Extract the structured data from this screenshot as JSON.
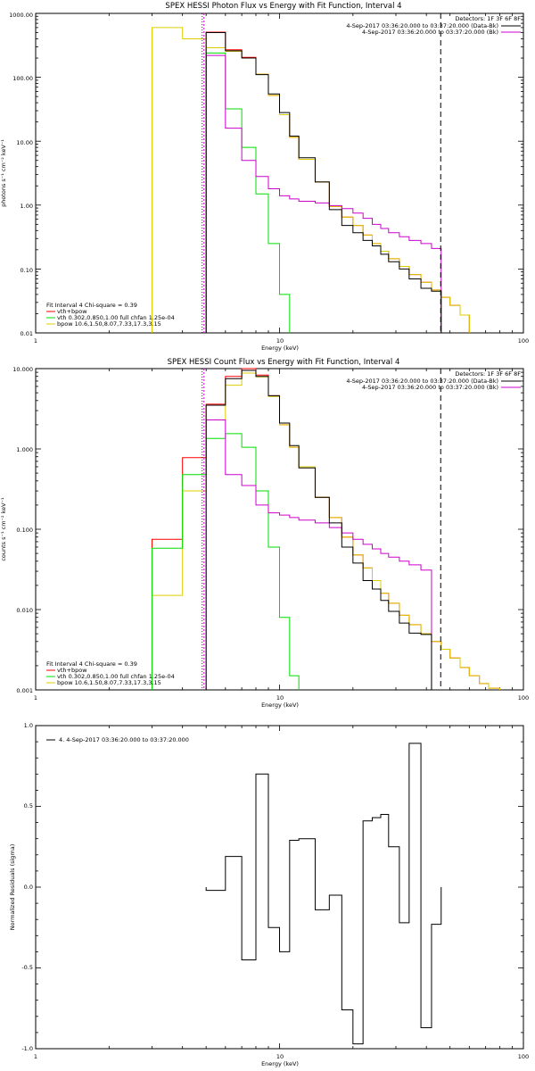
{
  "colors": {
    "data": "#000000",
    "background": "#cc00cc",
    "vth": "#00dd00",
    "bpow": "#ddcc00",
    "total": "#ff0000",
    "fit_bound": "#cc00cc"
  },
  "chart_data": [
    {
      "id": "photon",
      "type": "line",
      "step": true,
      "title": "SPEX HESSI Photon Flux vs Energy with Fit Function, Interval 4",
      "xlabel": "Energy (keV)",
      "ylabel": "photons s⁻¹ cm⁻² keV⁻¹",
      "xscale": "log",
      "yscale": "log",
      "xlim": [
        1,
        100
      ],
      "ylim": [
        0.01,
        1000
      ],
      "x_ticks": [
        "1",
        "10",
        "100"
      ],
      "y_ticks": [
        "0.01",
        "0.10",
        "1.00",
        "10.00",
        "100.00",
        "1000.00"
      ],
      "legend_right": [
        "Detectors: 1F 3F 6F 8F",
        "4-Sep-2017 03:36:20.000 to 03:37:20.000 (Data-Bk)",
        "4-Sep-2017 03:36:20.000 to 03:37:20.000 (Bk)"
      ],
      "legend_left": [
        "Fit Interval 4   Chi-square = 0.39",
        "vth+bpow",
        "vth 0.302,0.850,1.00  full chfan 1.25e-04",
        "bpow 10.6,1.50,8.07,7.33,17.3,3.15"
      ],
      "fit_range": [
        4.9,
        45.8
      ],
      "edges": [
        3.0,
        4.0,
        5.0,
        6.0,
        7.0,
        8.0,
        9.0,
        10.0,
        11.0,
        12.0,
        14.0,
        16.0,
        18.0,
        20.0,
        22.0,
        24.0,
        26.0,
        28.0,
        31.0,
        34.0,
        38.0,
        42.0,
        46.0,
        50.0,
        55.0,
        60.0
      ],
      "series": [
        {
          "name": "Data-Bk",
          "values": [
            null,
            null,
            500,
            260,
            200,
            110,
            55,
            28,
            12,
            5.5,
            2.3,
            0.85,
            0.48,
            0.37,
            0.28,
            0.23,
            0.17,
            0.13,
            0.1,
            0.07,
            0.05,
            0.045,
            null,
            null,
            null
          ]
        },
        {
          "name": "Bk",
          "values": [
            null,
            null,
            220,
            16,
            5,
            2.8,
            1.8,
            1.4,
            1.25,
            1.15,
            1.08,
            0.98,
            0.88,
            0.75,
            0.62,
            0.5,
            0.43,
            0.37,
            0.32,
            0.28,
            0.25,
            0.21,
            null,
            null,
            null
          ]
        },
        {
          "name": "vth+bpow",
          "values": [
            null,
            null,
            510,
            270,
            205,
            112,
            52,
            26,
            11.5,
            5.2,
            2.3,
            0.95,
            0.65,
            0.48,
            0.34,
            0.25,
            0.19,
            0.145,
            0.11,
            0.082,
            0.062,
            0.047,
            0.036,
            0.027,
            0.019
          ]
        },
        {
          "name": "vth",
          "values": [
            null,
            null,
            240,
            32,
            8,
            1.5,
            0.25,
            0.04,
            null,
            null,
            null,
            null,
            null,
            null,
            null,
            null,
            null,
            null,
            null,
            null,
            null,
            null,
            null,
            null,
            null
          ]
        },
        {
          "name": "bpow",
          "values": [
            600,
            400,
            290,
            255,
            200,
            112,
            52,
            26,
            11.5,
            5.2,
            2.3,
            0.95,
            0.65,
            0.48,
            0.34,
            0.25,
            0.19,
            0.145,
            0.11,
            0.082,
            0.062,
            0.047,
            0.036,
            0.027,
            0.019
          ]
        }
      ]
    },
    {
      "id": "count",
      "type": "line",
      "step": true,
      "title": "SPEX HESSI Count Flux vs Energy with Fit Function, Interval 4",
      "xlabel": "Energy (keV)",
      "ylabel": "counts s⁻¹ cm⁻² keV⁻¹",
      "xscale": "log",
      "yscale": "log",
      "xlim": [
        1,
        100
      ],
      "ylim": [
        0.001,
        10
      ],
      "x_ticks": [
        "1",
        "10",
        "100"
      ],
      "y_ticks": [
        "0.001",
        "0.010",
        "0.100",
        "1.000",
        "10.000"
      ],
      "legend_right": [
        "Detectors: 1F 3F 6F 8F",
        "4-Sep-2017 03:36:20.000 to 03:37:20.000 (Data-Bk)",
        "4-Sep-2017 03:36:20.000 to 03:37:20.000 (Bk)"
      ],
      "legend_left": [
        "Fit Interval 4   Chi-square = 0.39",
        "vth+bpow",
        "vth 0.302,0.850,1.00  full chfan 1.25e-04",
        "bpow 10.6,1.50,8.07,7.33,17.3,3.15"
      ],
      "fit_range": [
        4.9,
        45.8
      ],
      "edges": [
        3.0,
        4.0,
        5.0,
        6.0,
        7.0,
        8.0,
        9.0,
        10.0,
        11.0,
        12.0,
        14.0,
        16.0,
        18.0,
        20.0,
        22.0,
        24.0,
        26.0,
        28.0,
        31.0,
        34.0,
        38.0,
        42.0,
        46.0,
        50.0,
        55.0,
        60.0,
        66.0,
        72.0,
        80.0
      ],
      "series": [
        {
          "name": "Data-Bk",
          "values": [
            null,
            null,
            3.5,
            7.5,
            9.5,
            8.0,
            4.6,
            2.1,
            1.1,
            0.58,
            0.25,
            0.12,
            0.06,
            0.038,
            0.023,
            0.018,
            0.013,
            0.0095,
            0.0068,
            0.0051,
            0.0049,
            null,
            null,
            null,
            null,
            null,
            null,
            null
          ]
        },
        {
          "name": "Bk",
          "values": [
            null,
            null,
            2.3,
            0.48,
            0.35,
            0.2,
            0.16,
            0.15,
            0.14,
            0.13,
            0.12,
            0.105,
            0.09,
            0.075,
            0.065,
            0.057,
            0.05,
            0.045,
            0.04,
            0.036,
            0.031,
            null,
            null,
            null,
            null,
            null,
            null,
            null
          ]
        },
        {
          "name": "vth+bpow",
          "values": [
            0.075,
            0.78,
            3.6,
            8.0,
            10.0,
            8.3,
            4.6,
            2.0,
            1.05,
            0.6,
            0.25,
            0.14,
            0.08,
            0.048,
            0.033,
            0.023,
            0.016,
            0.012,
            0.0085,
            0.0065,
            0.005,
            0.004,
            0.0032,
            0.0025,
            0.0019,
            0.0015,
            0.0012,
            0.00105
          ]
        },
        {
          "name": "vth",
          "values": [
            0.058,
            0.48,
            1.35,
            1.55,
            1.05,
            0.3,
            0.06,
            0.008,
            0.0015,
            null,
            null,
            null,
            null,
            null,
            null,
            null,
            null,
            null,
            null,
            null,
            null,
            null,
            null,
            null,
            null,
            null,
            null,
            null
          ]
        },
        {
          "name": "bpow",
          "values": [
            0.015,
            0.3,
            2.3,
            6.2,
            8.8,
            7.9,
            4.5,
            2.0,
            1.05,
            0.6,
            0.25,
            0.14,
            0.08,
            0.048,
            0.033,
            0.023,
            0.016,
            0.012,
            0.0085,
            0.0065,
            0.005,
            0.004,
            0.0032,
            0.0025,
            0.0019,
            0.0015,
            0.0012,
            0.00105
          ]
        }
      ]
    },
    {
      "id": "resid",
      "type": "line",
      "step": true,
      "xlabel": "Energy (keV)",
      "ylabel": "Normalized Residuals (sigma)",
      "xscale": "log",
      "yscale": "linear",
      "xlim": [
        1,
        100
      ],
      "ylim": [
        -1,
        1
      ],
      "x_ticks": [
        "1",
        "10",
        "100"
      ],
      "y_ticks": [
        "-1.0",
        "-0.5",
        "0.0",
        "0.5",
        "1.0"
      ],
      "legend_left": [
        "4.  4-Sep-2017 03:36:20.000 to 03:37:20.000"
      ],
      "edges": [
        5.0,
        6.0,
        7.0,
        8.0,
        9.0,
        10.0,
        11.0,
        12.0,
        14.0,
        16.0,
        18.0,
        20.0,
        22.0,
        24.0,
        26.0,
        28.0,
        31.0,
        34.0,
        38.0,
        42.0,
        46.0
      ],
      "series": [
        {
          "name": "residuals",
          "values": [
            -0.02,
            0.19,
            -0.45,
            0.7,
            -0.25,
            -0.4,
            0.29,
            0.3,
            -0.14,
            -0.05,
            -0.76,
            -0.97,
            0.41,
            0.43,
            0.45,
            0.25,
            -0.22,
            0.89,
            -0.87,
            -0.23
          ]
        }
      ]
    }
  ]
}
